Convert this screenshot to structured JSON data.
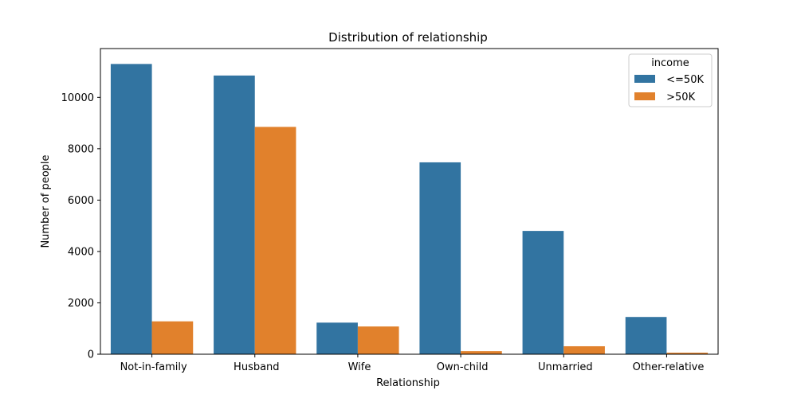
{
  "chart_data": {
    "type": "bar",
    "title": "Distribution of relationship",
    "xlabel": "Relationship",
    "ylabel": "Number of people",
    "categories": [
      " Not-in-family",
      " Husband",
      " Wife",
      " Own-child",
      " Unmarried",
      " Other-relative"
    ],
    "series": [
      {
        "name": " <=50K",
        "values": [
          11300,
          10850,
          1230,
          7470,
          4800,
          1450
        ],
        "color": "#3274a1"
      },
      {
        "name": " >50K",
        "values": [
          1280,
          8850,
          1080,
          120,
          310,
          60
        ],
        "color": "#e1812c"
      }
    ],
    "ylim": [
      0,
      11900
    ],
    "yticks": [
      0,
      2000,
      4000,
      6000,
      8000,
      10000
    ],
    "legend": {
      "title": "income",
      "placement": "top-right"
    },
    "grid": false
  }
}
